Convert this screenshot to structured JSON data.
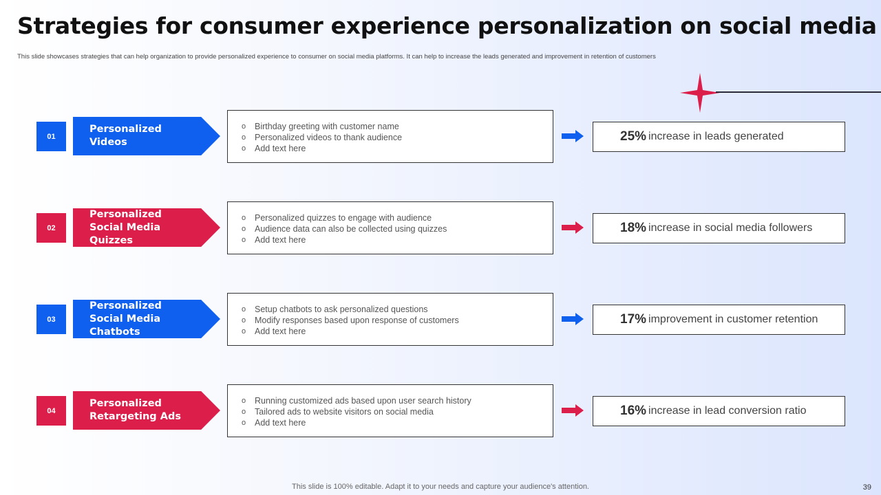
{
  "title": "Strategies for consumer experience personalization on social media",
  "subtitle": "This slide showcases strategies that can help organization to provide personalized experience to consumer on social media platforms. It can help to increase the leads generated and improvement in retention of customers",
  "colors": {
    "blue": "#1060f0",
    "red": "#dc1e4a",
    "star": "#dc1e4a"
  },
  "bullet_marker": "o",
  "rows": [
    {
      "number": "01",
      "color": "blue",
      "label": "Personalized Videos",
      "bullets": [
        "Birthday greeting with customer name",
        "Personalized videos to thank audience",
        "Add text here"
      ],
      "pct": "25%",
      "result_text": "increase in leads generated"
    },
    {
      "number": "02",
      "color": "red",
      "label": "Personalized Social Media Quizzes",
      "bullets": [
        "Personalized quizzes to engage with audience",
        "Audience data can also be collected using quizzes",
        "Add text here"
      ],
      "pct": "18%",
      "result_text": "increase in social media followers"
    },
    {
      "number": "03",
      "color": "blue",
      "label": "Personalized Social Media Chatbots",
      "bullets": [
        "Setup chatbots to ask personalized questions",
        "Modify responses based upon response of customers",
        "Add text here"
      ],
      "pct": "17%",
      "result_text": "improvement in customer retention"
    },
    {
      "number": "04",
      "color": "red",
      "label": "Personalized Retargeting Ads",
      "bullets": [
        "Running customized ads based upon user search history",
        "Tailored ads to website visitors on social media",
        "Add text here"
      ],
      "pct": "16%",
      "result_text": "increase in lead conversion ratio"
    }
  ],
  "footer": "This slide is 100% editable. Adapt it to your needs and capture your audience's attention.",
  "page_number": "39"
}
